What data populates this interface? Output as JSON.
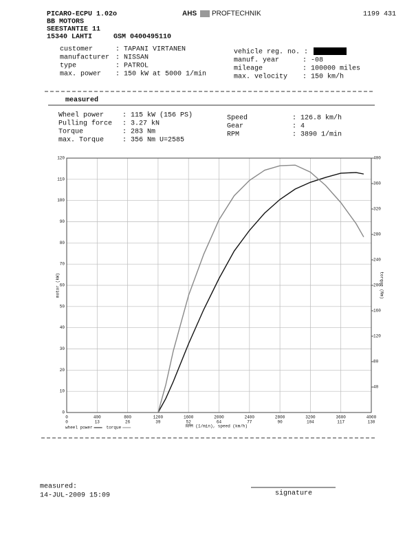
{
  "header": {
    "lines": [
      "PICARO-ECPU 1.02o",
      "BB MOTORS",
      "SEESTANTIE 11",
      "15340 LAHTI"
    ],
    "gsm": "GSM 0400495110",
    "brand": "AHS",
    "brand2": "PROFTECHNIK",
    "number": "1199 431"
  },
  "vehicle": {
    "left": [
      {
        "label": "customer",
        "value": ": TAPANI VIRTANEN"
      },
      {
        "label": "manufacturer",
        "value": ": NISSAN"
      },
      {
        "label": "type",
        "value": ": PATROL"
      },
      {
        "label": "max. power",
        "value": ": 150 kW at 5000 1/min"
      }
    ],
    "right": [
      {
        "label": "vehicle reg. no. :"
      },
      {
        "label": "manuf. year",
        "value": ": -08"
      },
      {
        "label": "mileage",
        "value": ": 100000 miles"
      },
      {
        "label": "max. velocity",
        "value": ": 150 km/h"
      }
    ]
  },
  "measured": {
    "title": "measured",
    "left": [
      {
        "label": "Wheel power",
        "value": ":    115 kW (156 PS)"
      },
      {
        "label": "Pulling force",
        "value": ":   3.27 kN"
      },
      {
        "label": "Torque",
        "value": ":    283 Nm"
      },
      {
        "label": "max. Torque",
        "value": ":    356 Nm U=2585"
      }
    ],
    "right": [
      {
        "label": "Speed",
        "value": ": 126.8 km/h"
      },
      {
        "label": "Gear",
        "value": ": 4"
      },
      {
        "label": "RPM",
        "value": ":  3890 1/min"
      }
    ]
  },
  "chart_data": {
    "type": "line",
    "xlabel": "RPM (1/min), speed (km/h)",
    "ylabel": "motor (kW)",
    "y2label": "torque (Nm)",
    "x": [
      1200,
      1300,
      1400,
      1600,
      1800,
      2000,
      2200,
      2400,
      2600,
      2800,
      3000,
      3200,
      3400,
      3600,
      3800,
      3900
    ],
    "series": [
      {
        "name": "wheel power",
        "color": "#111111",
        "values": [
          0,
          6.5,
          14.6,
          32.4,
          48.6,
          63.2,
          76.2,
          85.9,
          94.1,
          100.5,
          105.4,
          108.6,
          110.9,
          112.9,
          113.2,
          112.5
        ]
      },
      {
        "name": "torque",
        "color": "#888888",
        "axis": "y2",
        "values": [
          0,
          43,
          97,
          184,
          249,
          303,
          341,
          365,
          381,
          388,
          389,
          378,
          357,
          330,
          297,
          276
        ]
      }
    ],
    "xlim": [
      0,
      4000
    ],
    "xticks": [
      0,
      400,
      800,
      1200,
      1600,
      2000,
      2400,
      2800,
      3200,
      3600,
      4000
    ],
    "speed_ticks": [
      0,
      13,
      26,
      39,
      52,
      64,
      77,
      90,
      104,
      117,
      130
    ],
    "ylim": [
      0,
      120
    ],
    "yticks": [
      0,
      10,
      20,
      30,
      40,
      50,
      60,
      70,
      80,
      90,
      100,
      110,
      120
    ],
    "y2lim": [
      0,
      400
    ],
    "y2ticks": [
      40,
      80,
      120,
      160,
      200,
      240,
      280,
      320,
      360,
      400
    ],
    "grid": true
  },
  "footer": {
    "measured": "measured:",
    "date": "14-JUL-2009 15:09",
    "signature": "signature"
  }
}
